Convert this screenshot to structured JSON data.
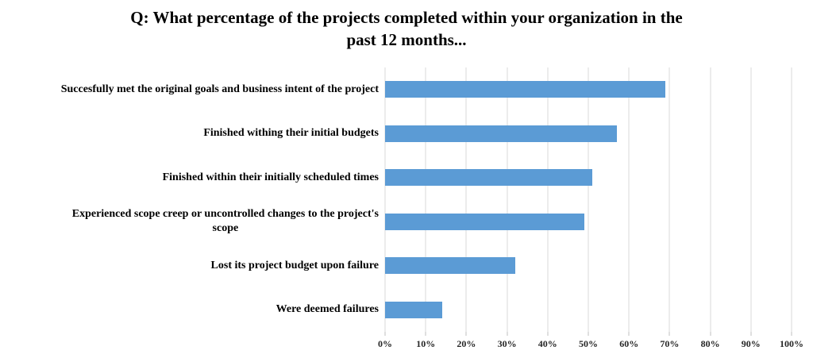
{
  "title": "Q: What percentage of the projects completed within your organization in the\npast 12 months...",
  "chart_data": {
    "type": "bar",
    "orientation": "horizontal",
    "title": "Q: What percentage of the projects completed within your organization in the past 12 months...",
    "categories": [
      "Succesfully met the original goals and business intent of the project",
      "Finished withing their initial budgets",
      "Finished within their initially scheduled times",
      "Experienced scope creep or uncontrolled changes to the project's\nscope",
      "Lost its project budget upon failure",
      "Were deemed failures"
    ],
    "values": [
      69,
      57,
      51,
      49,
      32,
      14
    ],
    "x_tick_labels": [
      "0%",
      "10%",
      "20%",
      "30%",
      "40%",
      "50%",
      "60%",
      "70%",
      "80%",
      "90%",
      "100%"
    ],
    "xlim": [
      0,
      100
    ],
    "grid": true,
    "legend": "none",
    "colors": {
      "bar": "#5B9BD5",
      "gridline": "#D9D9D9",
      "tick": "#BFBFBF",
      "axis_text": "#262626",
      "label_text": "#000000"
    }
  }
}
